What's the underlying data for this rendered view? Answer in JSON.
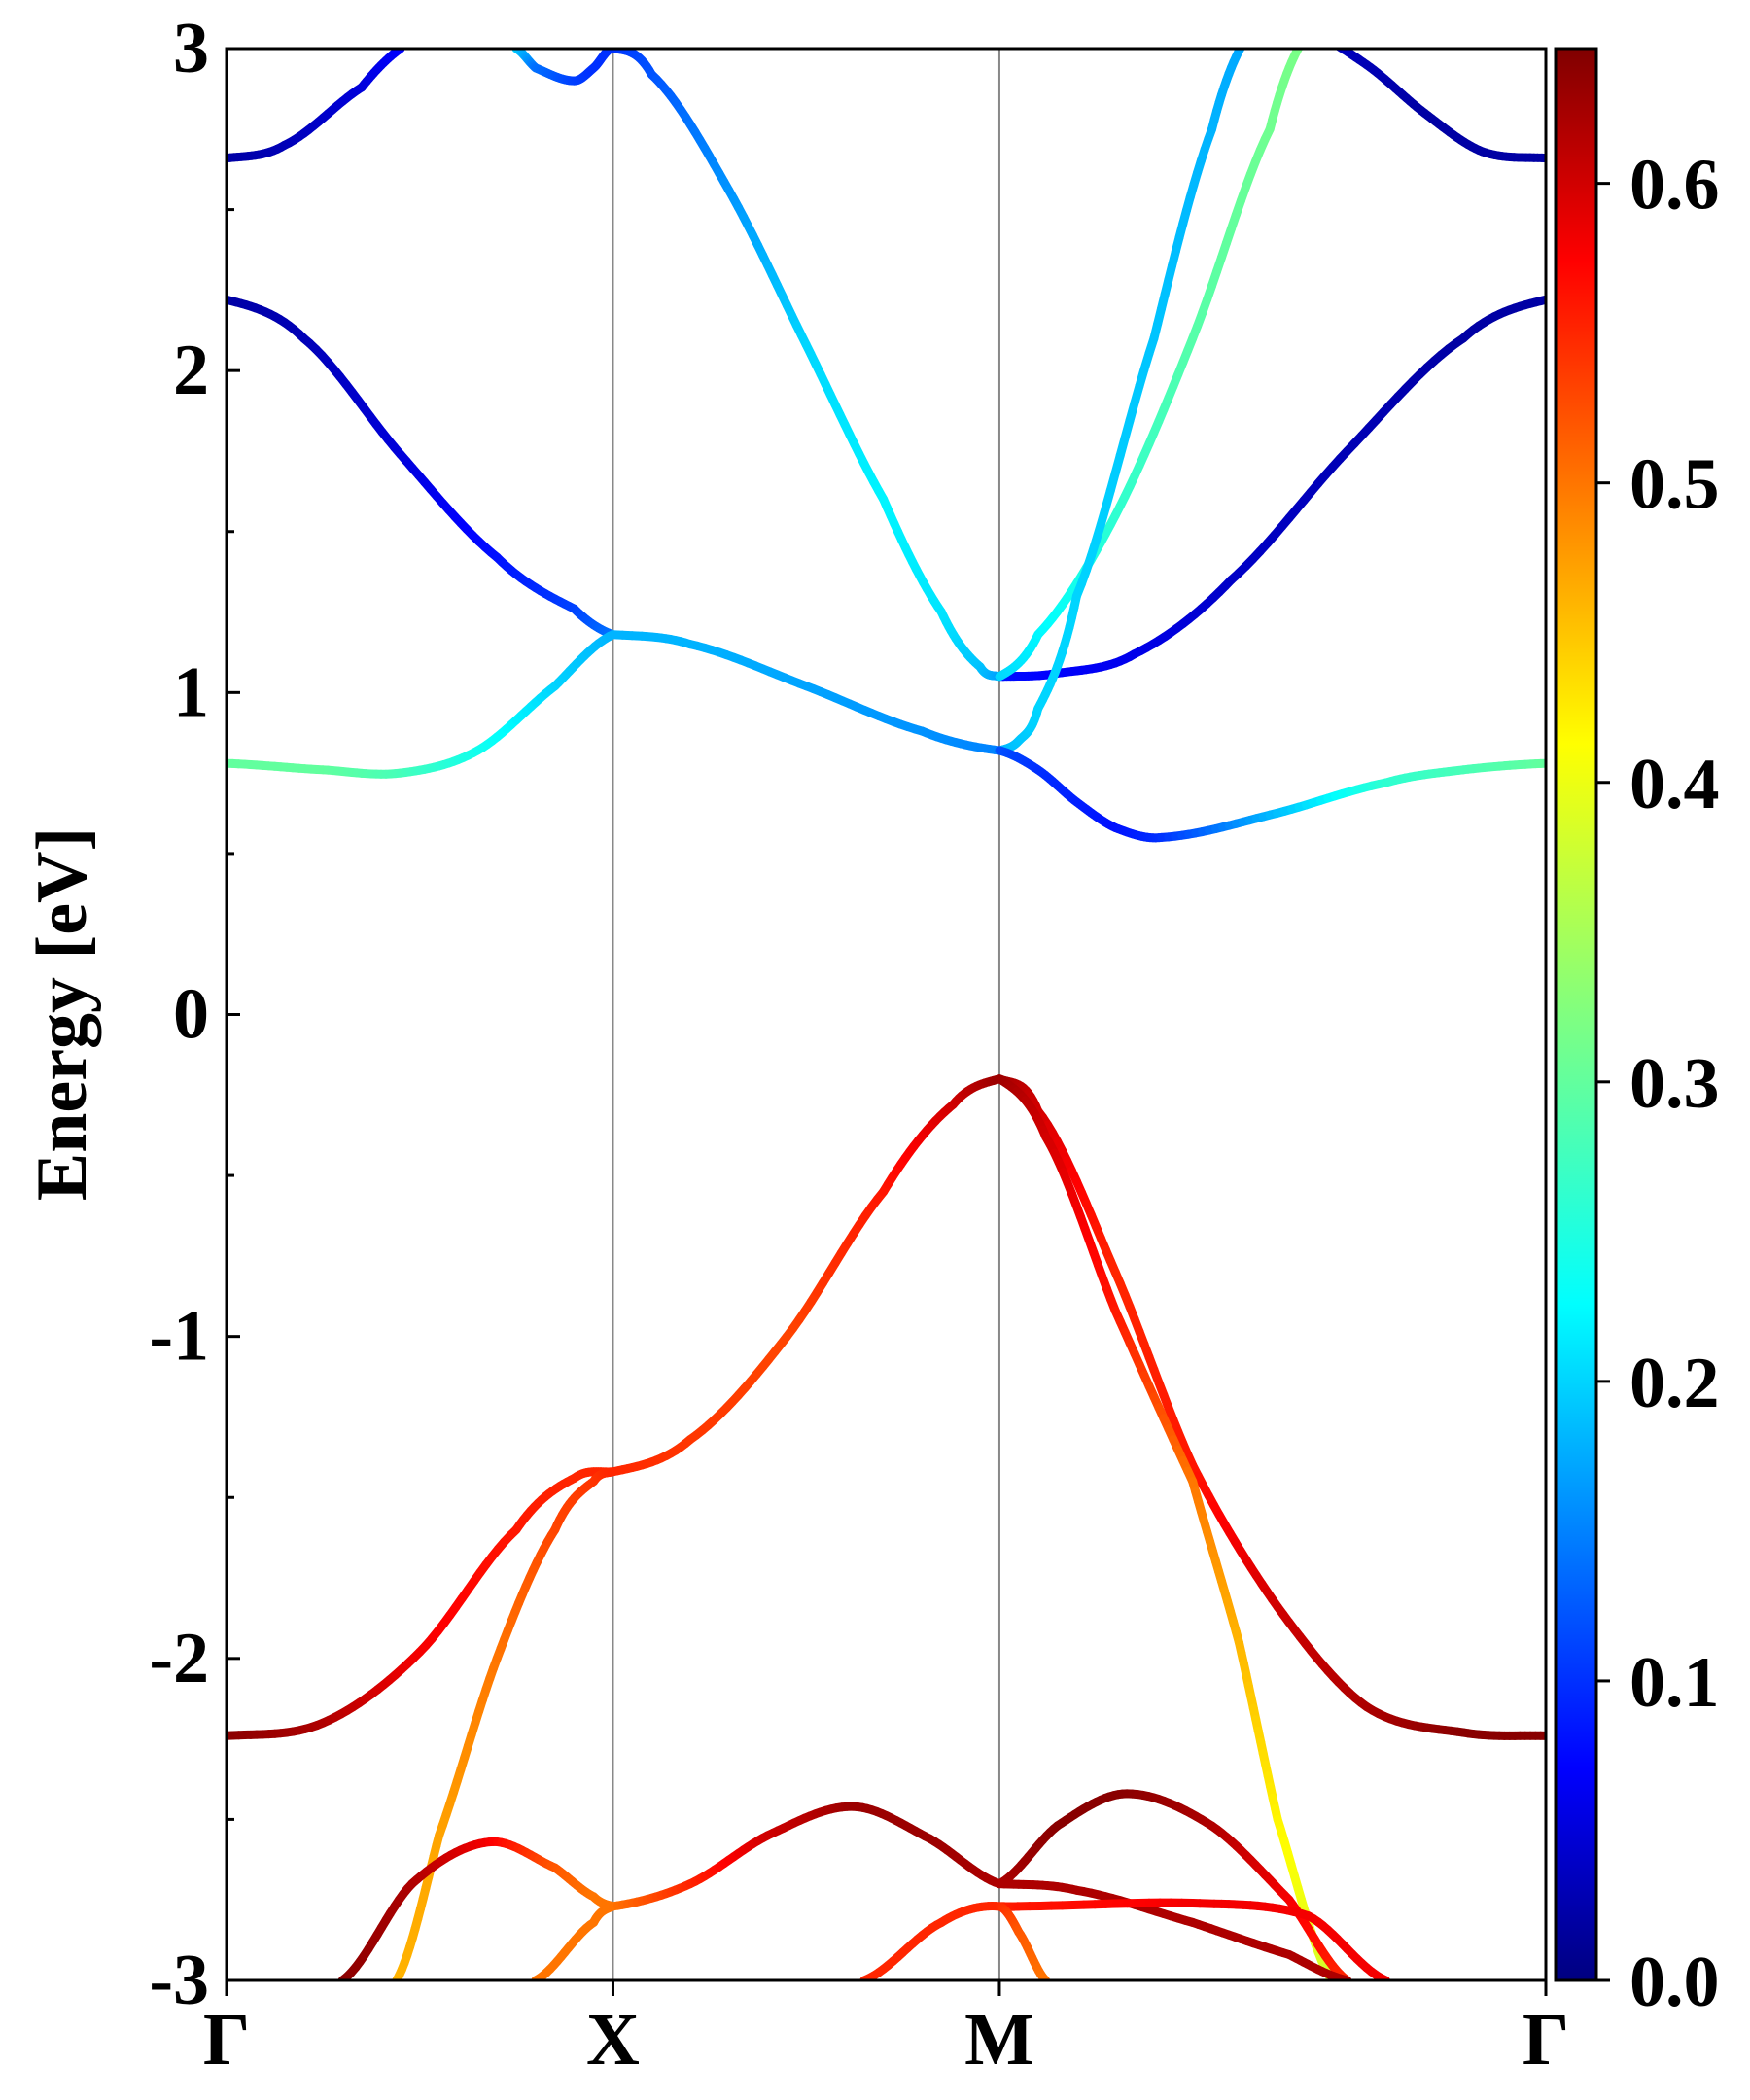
{
  "chart_data": {
    "type": "line",
    "title": "",
    "xlabel": "",
    "ylabel": "Energy [eV]",
    "ylim": [
      -3,
      3
    ],
    "yticks": [
      "3",
      "2",
      "1",
      "0",
      "-1",
      "-2",
      "-3"
    ],
    "ytick_values": [
      3,
      2,
      1,
      0,
      -1,
      -2,
      -3
    ],
    "kpoints": [
      {
        "label": "Γ",
        "x": 0
      },
      {
        "label": "X",
        "x": 1
      },
      {
        "label": "M",
        "x": 2
      },
      {
        "label": "Γ",
        "x": 3.414
      }
    ],
    "xlim": [
      0,
      3.414
    ],
    "grid": false,
    "colorbar": {
      "colormap": "jet",
      "range": [
        0.0,
        0.645
      ],
      "ticks": [
        "0.0",
        "0.1",
        "0.2",
        "0.3",
        "0.4",
        "0.5",
        "0.6"
      ],
      "tick_values": [
        0.0,
        0.1,
        0.2,
        0.3,
        0.4,
        0.5,
        0.6
      ]
    },
    "series": [
      {
        "x": [
          0,
          0.15,
          0.35,
          0.45,
          0.48
        ],
        "y": [
          2.66,
          2.7,
          2.88,
          3.0,
          3.05
        ],
        "c": [
          0.02,
          0.03,
          0.05,
          0.07,
          0.07
        ]
      },
      {
        "x": [
          0.75,
          0.8,
          0.9,
          0.95,
          1.0,
          1.1,
          1.3,
          1.5,
          1.7,
          1.85,
          1.95,
          2.0
        ],
        "y": [
          3.0,
          2.94,
          2.9,
          2.94,
          3.0,
          2.92,
          2.56,
          2.08,
          1.6,
          1.25,
          1.08,
          1.05
        ],
        "c": [
          0.2,
          0.14,
          0.11,
          0.1,
          0.1,
          0.12,
          0.16,
          0.2,
          0.22,
          0.21,
          0.19,
          0.17
        ]
      },
      {
        "x": [
          2.0,
          2.15,
          2.35,
          2.6,
          2.9,
          3.2,
          3.414
        ],
        "y": [
          1.05,
          1.06,
          1.12,
          1.35,
          1.75,
          2.1,
          2.22
        ],
        "c": [
          0.08,
          0.07,
          0.06,
          0.04,
          0.03,
          0.02,
          0.02
        ]
      },
      {
        "x": [
          2.0,
          2.1,
          2.3,
          2.5,
          2.7,
          2.8
        ],
        "y": [
          1.05,
          1.18,
          1.55,
          2.1,
          2.75,
          3.05
        ],
        "c": [
          0.2,
          0.22,
          0.26,
          0.29,
          0.31,
          0.32
        ]
      },
      {
        "x": [
          2.0,
          2.05,
          2.1,
          2.2,
          2.4,
          2.55,
          2.65
        ],
        "y": [
          0.82,
          0.85,
          0.95,
          1.3,
          2.1,
          2.75,
          3.05
        ],
        "c": [
          0.18,
          0.19,
          0.2,
          0.2,
          0.19,
          0.18,
          0.17
        ]
      },
      {
        "x": [
          2.8,
          2.95,
          3.1,
          3.25,
          3.414
        ],
        "y": [
          3.05,
          2.95,
          2.8,
          2.68,
          2.66
        ],
        "c": [
          0.04,
          0.03,
          0.02,
          0.02,
          0.02
        ]
      },
      {
        "x": [
          0,
          0.2,
          0.45,
          0.7,
          0.9,
          1.0
        ],
        "y": [
          2.22,
          2.1,
          1.74,
          1.42,
          1.26,
          1.18
        ],
        "c": [
          0.02,
          0.03,
          0.05,
          0.08,
          0.11,
          0.14
        ]
      },
      {
        "x": [
          0,
          0.25,
          0.45,
          0.65,
          0.85,
          1.0
        ],
        "y": [
          0.78,
          0.76,
          0.75,
          0.82,
          1.02,
          1.18
        ],
        "c": [
          0.3,
          0.3,
          0.28,
          0.24,
          0.2,
          0.18
        ]
      },
      {
        "x": [
          1.0,
          1.2,
          1.5,
          1.8,
          2.0
        ],
        "y": [
          1.18,
          1.15,
          1.02,
          0.88,
          0.82
        ],
        "c": [
          0.18,
          0.18,
          0.17,
          0.16,
          0.15
        ]
      },
      {
        "x": [
          2.0,
          2.1,
          2.2,
          2.3,
          2.42,
          2.7,
          3.0,
          3.2,
          3.414
        ],
        "y": [
          0.82,
          0.76,
          0.66,
          0.58,
          0.55,
          0.62,
          0.72,
          0.76,
          0.78
        ],
        "c": [
          0.12,
          0.1,
          0.09,
          0.08,
          0.1,
          0.18,
          0.26,
          0.28,
          0.3
        ]
      },
      {
        "x": [
          0,
          0.25,
          0.5,
          0.75,
          0.9,
          1.0
        ],
        "y": [
          -2.24,
          -2.2,
          -1.98,
          -1.6,
          -1.44,
          -1.42
        ],
        "c": [
          0.64,
          0.62,
          0.58,
          0.56,
          0.55,
          0.55
        ]
      },
      {
        "x": [
          1.0,
          1.2,
          1.45,
          1.7,
          1.88,
          2.0
        ],
        "y": [
          -1.42,
          -1.32,
          -1.0,
          -0.55,
          -0.28,
          -0.2
        ],
        "c": [
          0.55,
          0.54,
          0.53,
          0.56,
          0.6,
          0.63
        ]
      },
      {
        "x": [
          2.0,
          2.1,
          2.3,
          2.5,
          2.72,
          2.95,
          3.2,
          3.414
        ],
        "y": [
          -0.2,
          -0.3,
          -0.8,
          -1.4,
          -1.84,
          -2.15,
          -2.23,
          -2.24
        ],
        "c": [
          0.63,
          0.6,
          0.55,
          0.56,
          0.6,
          0.62,
          0.64,
          0.64
        ]
      },
      {
        "x": [
          2.0,
          2.12,
          2.3,
          2.5,
          2.62,
          2.72,
          2.86
        ],
        "y": [
          -0.2,
          -0.38,
          -0.92,
          -1.45,
          -1.95,
          -2.5,
          -3.0
        ],
        "c": [
          0.63,
          0.6,
          0.56,
          0.5,
          0.46,
          0.42,
          0.38
        ]
      },
      {
        "x": [
          0.44,
          0.55,
          0.7,
          0.85,
          0.95,
          1.0
        ],
        "y": [
          -3.0,
          -2.55,
          -2.0,
          -1.6,
          -1.45,
          -1.42
        ],
        "c": [
          0.46,
          0.47,
          0.5,
          0.53,
          0.54,
          0.55
        ]
      },
      {
        "x": [
          0.3,
          0.48,
          0.68,
          0.85,
          0.95,
          1.0
        ],
        "y": [
          -3.0,
          -2.7,
          -2.57,
          -2.65,
          -2.74,
          -2.77
        ],
        "c": [
          0.64,
          0.62,
          0.58,
          0.52,
          0.5,
          0.5
        ]
      },
      {
        "x": [
          0.8,
          0.95,
          1.0
        ],
        "y": [
          -3.0,
          -2.82,
          -2.77
        ],
        "c": [
          0.5,
          0.5,
          0.5
        ]
      },
      {
        "x": [
          1.0,
          1.2,
          1.4,
          1.62,
          1.82,
          2.0
        ],
        "y": [
          -2.77,
          -2.7,
          -2.55,
          -2.46,
          -2.56,
          -2.7
        ],
        "c": [
          0.5,
          0.55,
          0.6,
          0.63,
          0.63,
          0.62
        ]
      },
      {
        "x": [
          2.0,
          2.15,
          2.33,
          2.55,
          2.75,
          2.9
        ],
        "y": [
          -2.7,
          -2.52,
          -2.42,
          -2.52,
          -2.75,
          -3.0
        ],
        "c": [
          0.62,
          0.64,
          0.64,
          0.62,
          0.58,
          0.55
        ]
      },
      {
        "x": [
          2.0,
          2.2,
          2.5,
          2.75,
          2.9
        ],
        "y": [
          -2.7,
          -2.72,
          -2.82,
          -2.92,
          -3.0
        ],
        "c": [
          0.62,
          0.62,
          0.62,
          0.62,
          0.62
        ]
      },
      {
        "x": [
          2.0,
          2.05,
          2.5,
          2.8,
          3.0
        ],
        "y": [
          -2.77,
          -2.77,
          -2.76,
          -2.8,
          -3.0
        ],
        "c": [
          0.55,
          0.56,
          0.58,
          0.58,
          0.58
        ]
      },
      {
        "x": [
          1.65,
          1.85,
          2.0,
          2.05,
          2.12
        ],
        "y": [
          -3.0,
          -2.82,
          -2.77,
          -2.85,
          -3.0
        ],
        "c": [
          0.55,
          0.55,
          0.55,
          0.52,
          0.5
        ]
      }
    ]
  }
}
